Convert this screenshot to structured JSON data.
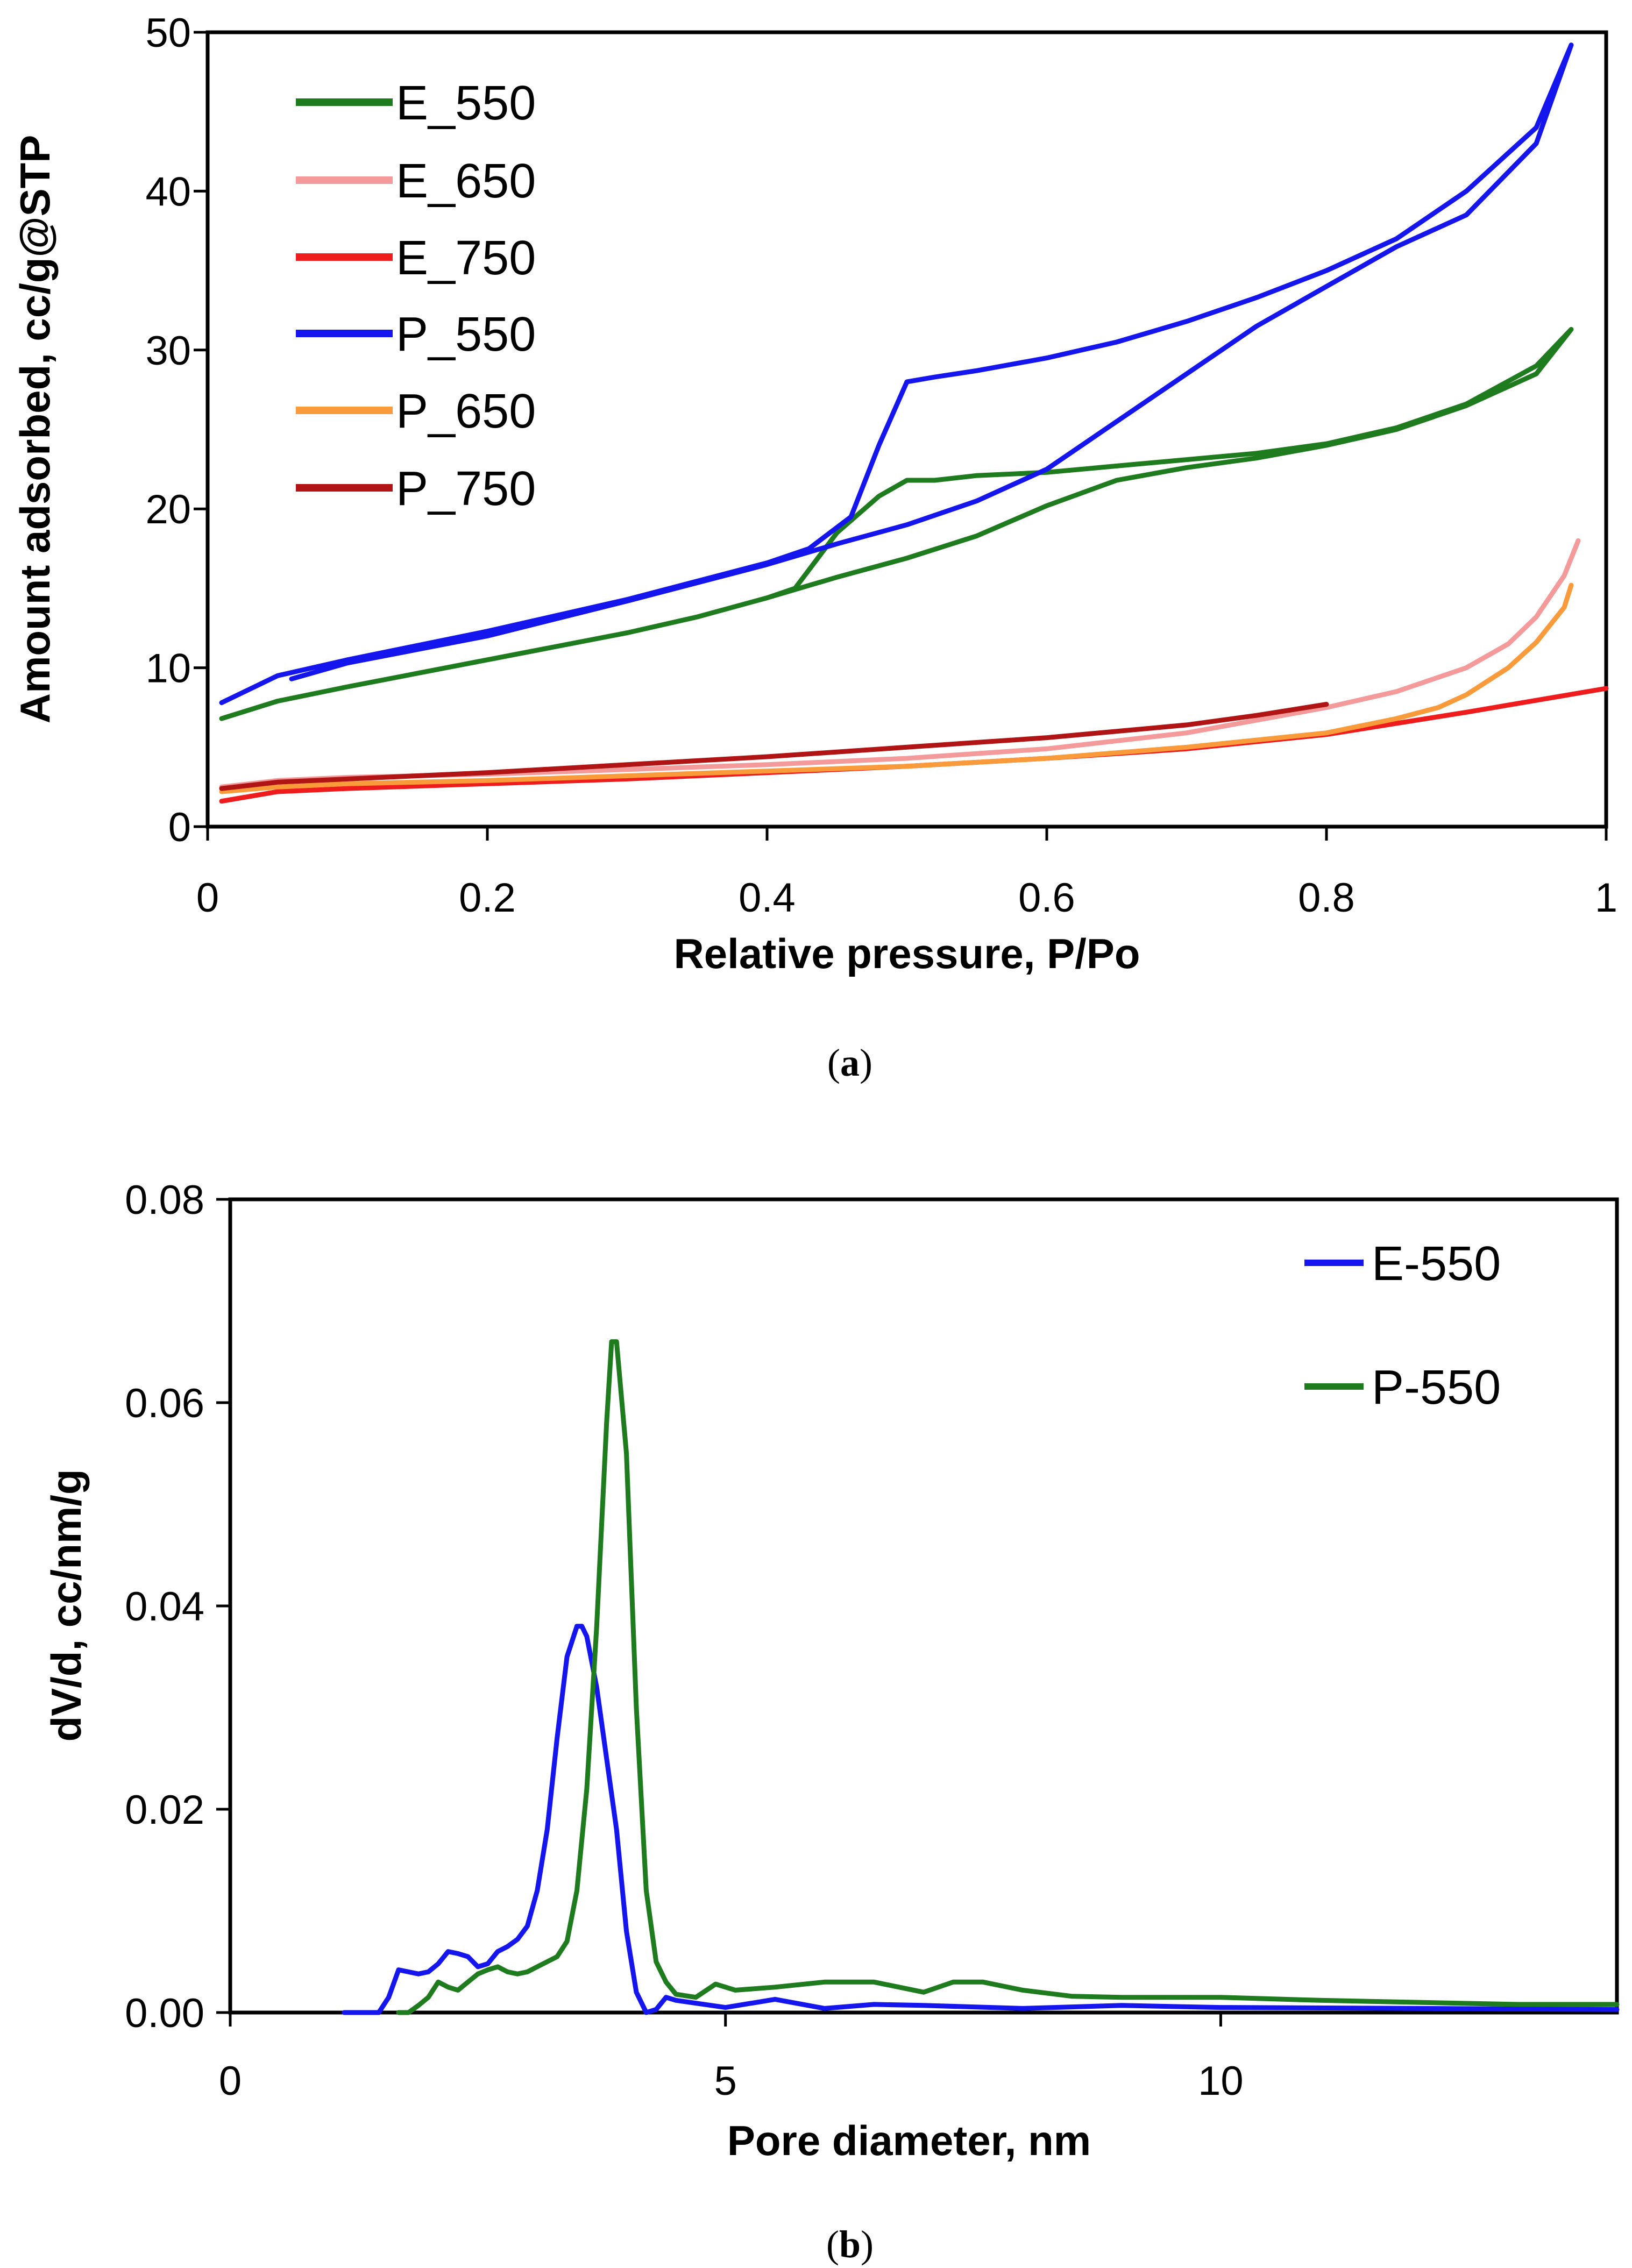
{
  "chart_data": [
    {
      "id": "a",
      "type": "line",
      "caption_open": "(",
      "caption_label": "a",
      "caption_close": ")",
      "title": "",
      "xlabel": "Relative pressure, P/Po",
      "ylabel": "Amount adsorbed, cc/g@STP",
      "xlim": [
        0,
        1
      ],
      "ylim": [
        0,
        50
      ],
      "xticks": [
        0,
        0.2,
        0.4,
        0.6,
        0.8,
        1
      ],
      "xtick_labels": [
        "0",
        "0.2",
        "0.4",
        "0.6",
        "0.8",
        "1"
      ],
      "yticks": [
        0,
        10,
        20,
        30,
        40,
        50
      ],
      "ytick_labels": [
        "0",
        "10",
        "20",
        "30",
        "40",
        "50"
      ],
      "legend_position": "top-left",
      "series": [
        {
          "name": "E_550",
          "color": "#1e7b1e",
          "x": [
            0.01,
            0.05,
            0.1,
            0.2,
            0.3,
            0.35,
            0.4,
            0.42,
            0.45,
            0.48,
            0.5,
            0.52,
            0.55,
            0.6,
            0.65,
            0.7,
            0.75,
            0.8,
            0.85,
            0.9,
            0.95,
            0.975,
            0.95,
            0.9,
            0.85,
            0.8,
            0.75,
            0.7,
            0.65,
            0.6,
            0.55,
            0.5,
            0.45,
            0.4
          ],
          "y": [
            6.8,
            7.9,
            8.8,
            10.5,
            12.2,
            13.2,
            14.4,
            15.0,
            18.5,
            20.8,
            21.8,
            21.8,
            22.1,
            22.3,
            22.7,
            23.1,
            23.5,
            24.1,
            25.1,
            26.6,
            29.0,
            31.3,
            28.5,
            26.5,
            25.0,
            24.0,
            23.2,
            22.6,
            21.8,
            20.2,
            18.3,
            16.9,
            15.7,
            14.4
          ]
        },
        {
          "name": "E_650",
          "color": "#f49a9a",
          "x": [
            0.01,
            0.05,
            0.1,
            0.2,
            0.3,
            0.4,
            0.5,
            0.6,
            0.7,
            0.8,
            0.85,
            0.9,
            0.93,
            0.95,
            0.97,
            0.98
          ],
          "y": [
            2.5,
            2.9,
            3.1,
            3.3,
            3.6,
            3.9,
            4.3,
            4.9,
            5.9,
            7.5,
            8.5,
            10.0,
            11.5,
            13.2,
            15.8,
            18.0
          ]
        },
        {
          "name": "E_750",
          "color": "#ee1c1c",
          "x": [
            0.01,
            0.05,
            0.1,
            0.2,
            0.3,
            0.4,
            0.5,
            0.6,
            0.7,
            0.8,
            0.9,
            1.0
          ],
          "y": [
            1.6,
            2.2,
            2.4,
            2.7,
            3.0,
            3.4,
            3.8,
            4.3,
            4.9,
            5.8,
            7.2,
            8.7
          ]
        },
        {
          "name": "P_550",
          "color": "#1515ee",
          "x": [
            0.01,
            0.05,
            0.1,
            0.2,
            0.3,
            0.4,
            0.43,
            0.46,
            0.48,
            0.5,
            0.52,
            0.55,
            0.6,
            0.65,
            0.7,
            0.75,
            0.8,
            0.85,
            0.9,
            0.95,
            0.975,
            0.95,
            0.9,
            0.85,
            0.8,
            0.75,
            0.7,
            0.65,
            0.6,
            0.55,
            0.5,
            0.45,
            0.4,
            0.3,
            0.2,
            0.1,
            0.06
          ],
          "y": [
            7.8,
            9.5,
            10.5,
            12.3,
            14.3,
            16.6,
            17.5,
            19.5,
            24.0,
            28.0,
            28.3,
            28.7,
            29.5,
            30.5,
            31.8,
            33.3,
            35.0,
            37.0,
            40.0,
            44.0,
            49.2,
            43.0,
            38.5,
            36.5,
            34.0,
            31.5,
            28.5,
            25.5,
            22.5,
            20.5,
            19.0,
            17.8,
            16.5,
            14.2,
            12.0,
            10.3,
            9.3
          ]
        },
        {
          "name": "P_650",
          "color": "#f99b3a",
          "x": [
            0.01,
            0.05,
            0.1,
            0.2,
            0.3,
            0.4,
            0.5,
            0.6,
            0.7,
            0.8,
            0.85,
            0.88,
            0.9,
            0.93,
            0.95,
            0.97,
            0.975
          ],
          "y": [
            2.2,
            2.5,
            2.7,
            2.9,
            3.2,
            3.5,
            3.8,
            4.3,
            5.0,
            5.9,
            6.8,
            7.5,
            8.3,
            10.0,
            11.6,
            13.8,
            15.2
          ]
        },
        {
          "name": "P_750",
          "color": "#b01414",
          "x": [
            0.01,
            0.05,
            0.1,
            0.2,
            0.3,
            0.4,
            0.5,
            0.6,
            0.7,
            0.75,
            0.8
          ],
          "y": [
            2.4,
            2.8,
            3.0,
            3.4,
            3.9,
            4.4,
            5.0,
            5.6,
            6.4,
            7.0,
            7.7
          ]
        }
      ]
    },
    {
      "id": "b",
      "type": "line",
      "caption_open": "(",
      "caption_label": "b",
      "caption_close": ")",
      "title": "",
      "xlabel": "Pore diameter, nm",
      "ylabel": "dV/d, cc/nm/g",
      "xlim": [
        0,
        14
      ],
      "ylim": [
        0,
        0.08
      ],
      "xticks": [
        0,
        5,
        10
      ],
      "xtick_labels": [
        "0",
        "5",
        "10"
      ],
      "yticks": [
        0,
        0.02,
        0.04,
        0.06,
        0.08
      ],
      "ytick_labels": [
        "0.00",
        "0.02",
        "0.04",
        "0.06",
        "0.08"
      ],
      "legend_position": "top-right",
      "series": [
        {
          "name": "E-550",
          "color": "#1515ee",
          "x": [
            1.15,
            1.5,
            1.6,
            1.7,
            1.8,
            1.9,
            2.0,
            2.1,
            2.2,
            2.3,
            2.4,
            2.5,
            2.6,
            2.7,
            2.8,
            2.9,
            3.0,
            3.1,
            3.2,
            3.3,
            3.4,
            3.5,
            3.55,
            3.6,
            3.7,
            3.8,
            3.9,
            4.0,
            4.1,
            4.2,
            4.3,
            4.4,
            4.5,
            5.0,
            5.5,
            6.0,
            6.5,
            7.0,
            8.0,
            9.0,
            10.0,
            12.0,
            14.0
          ],
          "y": [
            0.0,
            0.0,
            0.0015,
            0.0042,
            0.004,
            0.0038,
            0.004,
            0.0048,
            0.006,
            0.0058,
            0.0055,
            0.0045,
            0.0048,
            0.006,
            0.0065,
            0.0072,
            0.0085,
            0.012,
            0.018,
            0.027,
            0.035,
            0.038,
            0.038,
            0.037,
            0.032,
            0.025,
            0.018,
            0.008,
            0.002,
            0.0,
            0.0003,
            0.0015,
            0.0012,
            0.0005,
            0.0013,
            0.0004,
            0.0008,
            0.0007,
            0.0004,
            0.0007,
            0.0005,
            0.0004,
            0.0003
          ]
        },
        {
          "name": "P-550",
          "color": "#1e7b1e",
          "x": [
            1.7,
            1.8,
            1.9,
            2.0,
            2.1,
            2.2,
            2.3,
            2.4,
            2.5,
            2.6,
            2.7,
            2.8,
            2.9,
            3.0,
            3.1,
            3.2,
            3.3,
            3.4,
            3.5,
            3.6,
            3.7,
            3.8,
            3.85,
            3.9,
            4.0,
            4.1,
            4.2,
            4.3,
            4.4,
            4.5,
            4.7,
            4.9,
            5.1,
            5.5,
            6.0,
            6.5,
            7.0,
            7.3,
            7.6,
            8.0,
            8.5,
            9.0,
            10.0,
            11.0,
            12.0,
            13.0,
            14.0
          ],
          "y": [
            0.0,
            0.0,
            0.0007,
            0.0015,
            0.003,
            0.0025,
            0.0022,
            0.003,
            0.0038,
            0.0042,
            0.0045,
            0.004,
            0.0038,
            0.004,
            0.0045,
            0.005,
            0.0055,
            0.007,
            0.012,
            0.022,
            0.038,
            0.058,
            0.066,
            0.066,
            0.055,
            0.03,
            0.012,
            0.005,
            0.003,
            0.0018,
            0.0015,
            0.0028,
            0.0022,
            0.0025,
            0.003,
            0.003,
            0.002,
            0.003,
            0.003,
            0.0022,
            0.0016,
            0.0015,
            0.0015,
            0.0012,
            0.001,
            0.0008,
            0.0008
          ]
        }
      ]
    }
  ]
}
